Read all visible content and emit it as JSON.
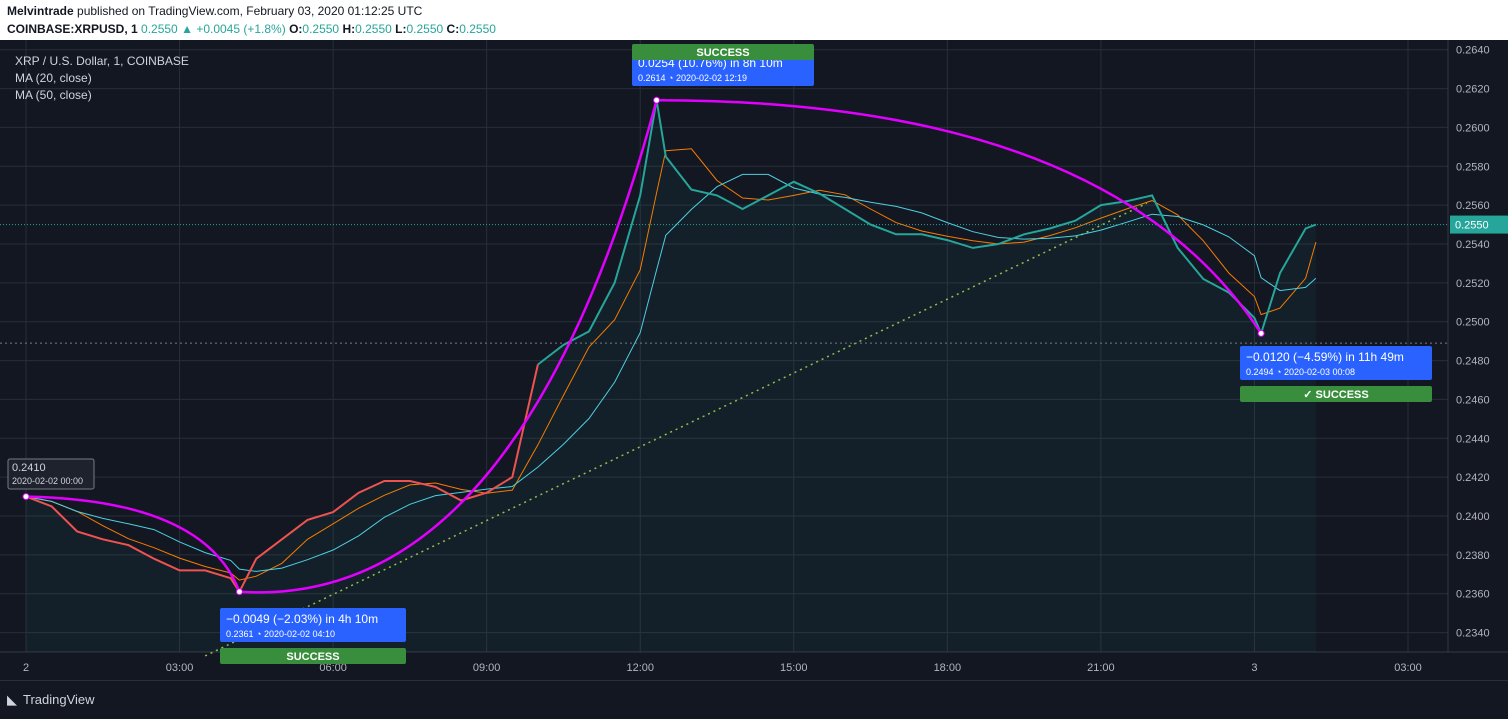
{
  "header": {
    "author": "Melvintrade",
    "published_text": " published on TradingView.com, February 03, 2020 01:12:25 UTC",
    "symbol_line_prefix": "COINBASE:XRPUSD, 1",
    "price": "0.2550",
    "change": "+0.0045 (+1.8%)",
    "o_label": "O:",
    "o_val": "0.2550",
    "h_label": "H:",
    "h_val": "0.2550",
    "l_label": "L:",
    "l_val": "0.2550",
    "c_label": "C:",
    "c_val": "0.2550"
  },
  "legend": {
    "title": "XRP / U.S. Dollar, 1, COINBASE",
    "ma20": "MA (20, close)",
    "ma50": "MA (50, close)"
  },
  "footer": {
    "logo_text": "TradingView"
  },
  "colors": {
    "background": "#131722",
    "bullish": "#26a69a",
    "bearish": "#ef5350",
    "arc": "#e100ff",
    "ma20": "#f57c00",
    "ma50": "#4dd0e1",
    "trend": "#8bc34a",
    "label_blue": "#2962ff",
    "success_green": "#388e3c"
  },
  "chart_data": {
    "type": "line",
    "title": "XRP / U.S. Dollar, 1, COINBASE",
    "xlabel": "",
    "ylabel": "",
    "ylim": [
      0.233,
      0.2645
    ],
    "current_price": "0.2550",
    "y_ticks": [
      "0.2640",
      "0.2620",
      "0.2600",
      "0.2580",
      "0.2560",
      "0.2540",
      "0.2520",
      "0.2500",
      "0.2480",
      "0.2460",
      "0.2440",
      "0.2420",
      "0.2400",
      "0.2380",
      "0.2360",
      "0.2340"
    ],
    "x_ticks": [
      "2",
      "03:00",
      "06:00",
      "09:00",
      "12:00",
      "15:00",
      "18:00",
      "21:00",
      "3",
      "03:00"
    ],
    "x_tick_hours": [
      0,
      3,
      6,
      9,
      12,
      15,
      18,
      21,
      24,
      27
    ],
    "series": [
      {
        "name": "",
        "hours": [
          0,
          0.5,
          1,
          1.5,
          2,
          2.5,
          3,
          3.5,
          4,
          4.17,
          4.5,
          5,
          5.5,
          6,
          6.5,
          7,
          7.5,
          8,
          8.5,
          9,
          9.5,
          10,
          10.5,
          11,
          11.5,
          12,
          12.32,
          12.5,
          13,
          13.5,
          14,
          14.5,
          15,
          15.5,
          16,
          16.5,
          17,
          17.5,
          18,
          18.5,
          19,
          19.5,
          20,
          20.5,
          21,
          21.5,
          22,
          22.5,
          23,
          23.5,
          24,
          24.13,
          24.5,
          25,
          25.2
        ],
        "values": [
          0.241,
          0.2405,
          0.2392,
          0.2388,
          0.2385,
          0.2378,
          0.2372,
          0.2372,
          0.2368,
          0.2361,
          0.2378,
          0.2388,
          0.2398,
          0.2402,
          0.2412,
          0.2418,
          0.2418,
          0.2415,
          0.2408,
          0.2412,
          0.242,
          0.2478,
          0.2488,
          0.2495,
          0.252,
          0.2565,
          0.2614,
          0.2585,
          0.2568,
          0.2565,
          0.2558,
          0.2565,
          0.2572,
          0.2566,
          0.2558,
          0.255,
          0.2545,
          0.2545,
          0.2542,
          0.2538,
          0.254,
          0.2545,
          0.2548,
          0.2552,
          0.256,
          0.2562,
          0.2565,
          0.2538,
          0.2522,
          0.2515,
          0.2502,
          0.2494,
          0.2525,
          0.2548,
          0.255
        ]
      }
    ],
    "annotations": [
      {
        "change": "−0.0049 (−2.03%) in 4h 10m",
        "detail": "0.2361 ◔ 2020-02-02  04:10",
        "status": "SUCCESS"
      },
      {
        "change": "0.0254 (10.76%) in 8h 10m",
        "detail": "0.2614 ◔ 2020-02-02  12:19",
        "status": "SUCCESS"
      },
      {
        "change": "−0.0120 (−4.59%) in 11h 49m",
        "detail": "0.2494 ◔ 2020-02-03  00:08",
        "status": "✓ SUCCESS"
      }
    ],
    "start_label": {
      "price": "0.2410",
      "date": "2020-02-02 00:00"
    }
  }
}
